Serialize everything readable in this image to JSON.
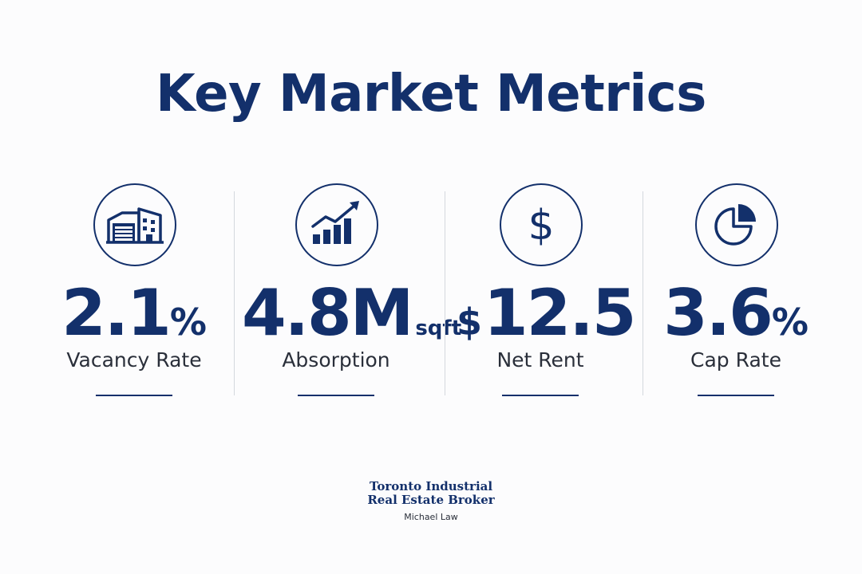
{
  "title": "Key Market Metrics",
  "metrics": [
    {
      "icon": "warehouse-icon",
      "prefix": "",
      "value": "2.1",
      "unit": "%",
      "label": "Vacancy Rate"
    },
    {
      "icon": "bar-chart-growth-icon",
      "prefix": "",
      "value": "4.8M",
      "unit": "sqft",
      "label": "Absorption"
    },
    {
      "icon": "dollar-icon",
      "prefix": "$",
      "value": "12.5",
      "unit": "",
      "label": "Net Rent"
    },
    {
      "icon": "pie-chart-icon",
      "prefix": "",
      "value": "3.6",
      "unit": "%",
      "label": "Cap Rate"
    }
  ],
  "brand": {
    "line1": "Toronto Industrial",
    "line2": "Real Estate Broker",
    "name": "Michael Law"
  },
  "colors": {
    "primary": "#13306b",
    "text": "#2a2f3a",
    "divider": "#d4d8de",
    "background": "#fcfcfd"
  }
}
